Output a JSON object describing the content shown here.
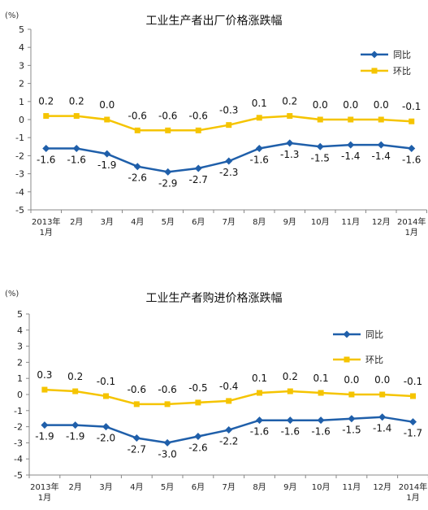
{
  "charts": [
    {
      "unit": "(%)",
      "chart_data": {
        "type": "line",
        "title": "工业生产者出厂价格涨跌幅",
        "categories": [
          [
            "2013年",
            "1月"
          ],
          [
            "2月"
          ],
          [
            "3月"
          ],
          [
            "4月"
          ],
          [
            "5月"
          ],
          [
            "6月"
          ],
          [
            "7月"
          ],
          [
            "8月"
          ],
          [
            "9月"
          ],
          [
            "10月"
          ],
          [
            "11月"
          ],
          [
            "12月"
          ],
          [
            "2014年",
            "1月"
          ]
        ],
        "ylim": [
          -5,
          5
        ],
        "yticks": [
          "5",
          "4",
          "3",
          "2",
          "1",
          "0",
          "-1",
          "-2",
          "-3",
          "-4",
          "-5"
        ],
        "grid": false,
        "legend": "top-right",
        "series": [
          {
            "name": "同比",
            "color": "#1f5faa",
            "marker": "diamond",
            "values": [
              -1.6,
              -1.6,
              -1.9,
              -2.6,
              -2.9,
              -2.7,
              -2.3,
              -1.6,
              -1.3,
              -1.5,
              -1.4,
              -1.4,
              -1.6
            ],
            "labels": [
              "-1.6",
              "-1.6",
              "-1.9",
              "-2.6",
              "-2.9",
              "-2.7",
              "-2.3",
              "-1.6",
              "-1.3",
              "-1.5",
              "-1.4",
              "-1.4",
              "-1.6"
            ]
          },
          {
            "name": "环比",
            "color": "#f5c400",
            "marker": "square",
            "values": [
              0.2,
              0.2,
              0.0,
              -0.6,
              -0.6,
              -0.6,
              -0.3,
              0.1,
              0.2,
              0.0,
              0.0,
              0.0,
              -0.1
            ],
            "labels": [
              "0.2",
              "0.2",
              "0.0",
              "-0.6",
              "-0.6",
              "-0.6",
              "-0.3",
              "0.1",
              "0.2",
              "0.0",
              "0.0",
              "0.0",
              "-0.1"
            ]
          }
        ]
      }
    },
    {
      "unit": "(%)",
      "chart_data": {
        "type": "line",
        "title": "工业生产者购进价格涨跌幅",
        "categories": [
          [
            "2013年",
            "1月"
          ],
          [
            "2月"
          ],
          [
            "3月"
          ],
          [
            "4月"
          ],
          [
            "5月"
          ],
          [
            "6月"
          ],
          [
            "7月"
          ],
          [
            "8月"
          ],
          [
            "9月"
          ],
          [
            "10月"
          ],
          [
            "11月"
          ],
          [
            "12月"
          ],
          [
            "2014年",
            "1月"
          ]
        ],
        "ylim": [
          -5,
          5
        ],
        "yticks": [
          "5",
          "4",
          "3",
          "2",
          "1",
          "0",
          "-1",
          "-2",
          "-3",
          "-4",
          "-5"
        ],
        "grid": false,
        "legend": "top-right",
        "series": [
          {
            "name": "同比",
            "color": "#1f5faa",
            "marker": "diamond",
            "values": [
              -1.9,
              -1.9,
              -2.0,
              -2.7,
              -3.0,
              -2.6,
              -2.2,
              -1.6,
              -1.6,
              -1.6,
              -1.5,
              -1.4,
              -1.7
            ],
            "labels": [
              "-1.9",
              "-1.9",
              "-2.0",
              "-2.7",
              "-3.0",
              "-2.6",
              "-2.2",
              "-1.6",
              "-1.6",
              "-1.6",
              "-1.5",
              "-1.4",
              "-1.7"
            ]
          },
          {
            "name": "环比",
            "color": "#f5c400",
            "marker": "square",
            "values": [
              0.3,
              0.2,
              -0.1,
              -0.6,
              -0.6,
              -0.5,
              -0.4,
              0.1,
              0.2,
              0.1,
              0.0,
              0.0,
              -0.1
            ],
            "labels": [
              "0.3",
              "0.2",
              "-0.1",
              "-0.6",
              "-0.6",
              "-0.5",
              "-0.4",
              "0.1",
              "0.2",
              "0.1",
              "0.0",
              "0.0",
              "-0.1"
            ]
          }
        ]
      }
    }
  ]
}
